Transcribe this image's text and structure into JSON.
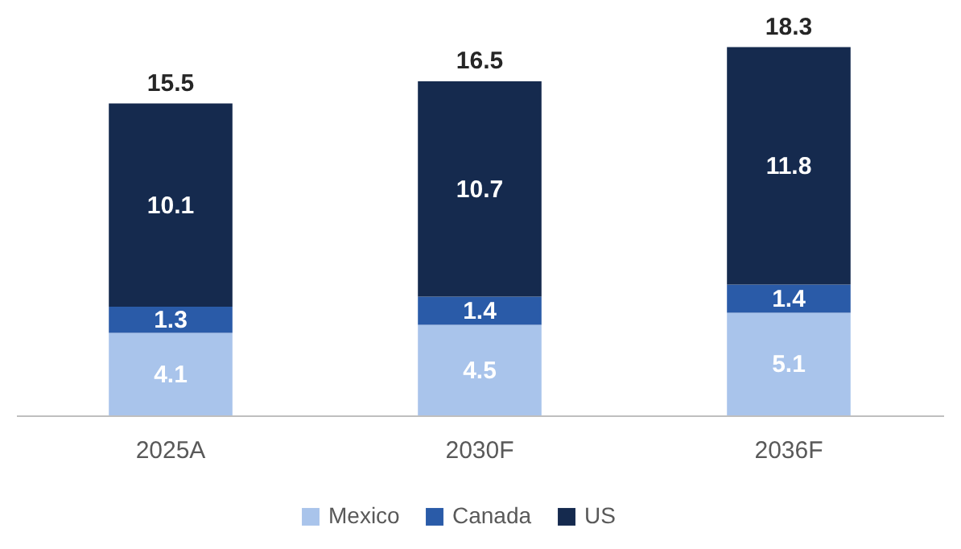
{
  "chart_data": {
    "type": "bar",
    "stacked": true,
    "data_labels": true,
    "legend": "bottom",
    "categories": [
      "2025A",
      "2030F",
      "2036F"
    ],
    "series": [
      {
        "name": "Mexico",
        "color": "#a9c4eb",
        "values": [
          4.1,
          4.5,
          5.1
        ]
      },
      {
        "name": "Canada",
        "color": "#2a5ba8",
        "values": [
          1.3,
          1.4,
          1.4
        ]
      },
      {
        "name": "US",
        "color": "#152a4e",
        "values": [
          10.1,
          10.7,
          11.8
        ]
      }
    ],
    "totals": [
      "15.5",
      "16.5",
      "18.3"
    ]
  }
}
